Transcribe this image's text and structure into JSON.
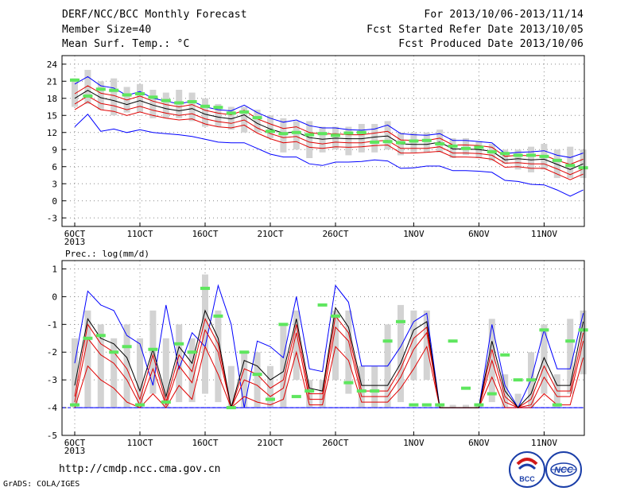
{
  "header": {
    "title": "DERF/NCC/BCC Monthly Forecast",
    "member_size": "Member Size=40",
    "variable": "Mean Surf. Temp.: °C",
    "period": "For 2013/10/06-2013/11/14",
    "started": "Fcst Started Refer Date 2013/10/05",
    "produced": "Fcst Produced Date 2013/10/06"
  },
  "footer": {
    "url": "http://cmdp.ncc.cma.gov.cn",
    "grads": "GrADS: COLA/IGES",
    "logo_left_text": "BCC",
    "logo_right_text": "NCC"
  },
  "colors": {
    "max_line": "#0000ff",
    "median_line": "#000000",
    "spread_lines": "#e00000",
    "box": "#d3d3d3",
    "mean_marker": "#5ee65e",
    "zero_line": "#0000ff"
  },
  "chart_data": [
    {
      "type": "line",
      "title": "Mean Surf. Temp.: °C",
      "xlabel": "",
      "ylabel": "",
      "x_tick_labels": [
        "6OCT",
        "11OCT",
        "16OCT",
        "21OCT",
        "26OCT",
        "1NOV",
        "6NOV",
        "11NOV"
      ],
      "x_tick_sublabel": "2013",
      "y_ticks": [
        -3,
        0,
        3,
        6,
        9,
        12,
        15,
        18,
        21,
        24
      ],
      "ylim": [
        -4.5,
        25.5
      ],
      "grid": true,
      "days": 40,
      "series": [
        {
          "name": "",
          "role": "max",
          "values": [
            20.5,
            21.8,
            20.2,
            19.8,
            18.5,
            19.2,
            18.0,
            17.5,
            17.0,
            17.5,
            16.5,
            16.0,
            15.8,
            16.8,
            15.5,
            14.5,
            13.8,
            14.2,
            13.2,
            12.8,
            12.8,
            12.5,
            12.4,
            12.6,
            13.3,
            11.8,
            11.6,
            11.5,
            11.8,
            10.6,
            10.6,
            10.4,
            10.2,
            8.3,
            8.5,
            8.6,
            8.8,
            8.0,
            7.6,
            8.4
          ]
        },
        {
          "name": "",
          "role": "upper",
          "values": [
            18.8,
            20.2,
            18.9,
            18.5,
            17.7,
            18.4,
            17.5,
            16.9,
            16.5,
            16.9,
            15.9,
            15.4,
            15.1,
            15.9,
            14.4,
            13.5,
            12.7,
            13.0,
            12.0,
            11.7,
            11.8,
            11.6,
            11.6,
            11.9,
            12.2,
            10.7,
            10.6,
            10.6,
            11.0,
            9.8,
            9.8,
            9.7,
            9.4,
            7.8,
            8.0,
            7.9,
            8.0,
            7.1,
            6.4,
            7.3
          ]
        },
        {
          "name": "",
          "role": "median",
          "values": [
            18.0,
            19.4,
            18.1,
            17.6,
            16.9,
            17.6,
            16.8,
            16.2,
            15.8,
            16.2,
            15.2,
            14.7,
            14.4,
            15.1,
            13.6,
            12.6,
            11.9,
            12.1,
            11.1,
            10.8,
            11.0,
            10.9,
            10.9,
            11.2,
            11.4,
            10.0,
            9.9,
            9.9,
            10.3,
            9.1,
            9.1,
            9.0,
            8.7,
            7.2,
            7.4,
            7.2,
            7.3,
            6.4,
            5.5,
            6.5
          ]
        },
        {
          "name": "",
          "role": "lower",
          "values": [
            17.0,
            18.4,
            17.1,
            16.7,
            16.0,
            16.6,
            15.9,
            15.4,
            15.0,
            15.3,
            14.4,
            13.9,
            13.6,
            14.2,
            12.8,
            11.8,
            11.1,
            11.3,
            10.3,
            10.0,
            10.3,
            10.2,
            10.2,
            10.5,
            10.6,
            9.2,
            9.2,
            9.2,
            9.5,
            8.4,
            8.4,
            8.3,
            8.0,
            6.6,
            6.7,
            6.5,
            6.5,
            5.6,
            4.6,
            5.6
          ]
        },
        {
          "name": "",
          "role": "lower2",
          "values": [
            16.0,
            17.4,
            16.0,
            15.7,
            15.0,
            15.6,
            15.0,
            14.5,
            14.2,
            14.4,
            13.5,
            13.0,
            12.8,
            13.3,
            11.9,
            10.9,
            10.2,
            10.4,
            9.4,
            9.2,
            9.5,
            9.4,
            9.5,
            9.7,
            9.8,
            8.4,
            8.4,
            8.5,
            8.7,
            7.7,
            7.7,
            7.6,
            7.3,
            5.9,
            6.0,
            5.7,
            5.7,
            4.7,
            3.7,
            4.7
          ]
        },
        {
          "name": "",
          "role": "min",
          "values": [
            13.0,
            15.2,
            12.2,
            12.6,
            12.0,
            12.5,
            12.0,
            11.8,
            11.6,
            11.3,
            10.8,
            10.3,
            10.2,
            10.2,
            9.2,
            8.2,
            7.7,
            7.7,
            6.5,
            6.2,
            6.8,
            6.8,
            6.9,
            7.2,
            7.0,
            5.7,
            5.8,
            6.1,
            6.1,
            5.3,
            5.3,
            5.2,
            5.0,
            3.6,
            3.4,
            2.9,
            2.8,
            1.9,
            0.8,
            1.9
          ]
        },
        {
          "name": "",
          "role": "mean_marker",
          "values": [
            21.2,
            18.4,
            19.6,
            19.4,
            18.6,
            18.8,
            18.2,
            17.6,
            17.2,
            17.4,
            16.6,
            16.4,
            15.4,
            15.6,
            14.6,
            12.2,
            11.8,
            12.0,
            11.6,
            11.8,
            11.5,
            11.9,
            12.0,
            10.3,
            10.4,
            10.2,
            10.5,
            10.6,
            10.0,
            9.6,
            9.2,
            9.4,
            8.6,
            8.3,
            8.0,
            8.0,
            7.8,
            7.1,
            6.2,
            5.8
          ]
        },
        {
          "name": "",
          "role": "box_top",
          "values": [
            21.5,
            23.0,
            21.0,
            21.5,
            20.0,
            20.5,
            19.5,
            19.0,
            19.5,
            19.0,
            18.0,
            17.0,
            16.5,
            16.5,
            16.0,
            15.0,
            14.5,
            14.0,
            14.0,
            13.0,
            13.0,
            13.0,
            13.5,
            13.5,
            14.0,
            12.0,
            12.0,
            12.0,
            12.5,
            11.0,
            11.0,
            10.5,
            10.0,
            9.0,
            9.0,
            9.5,
            10.0,
            9.0,
            9.5,
            9.0
          ]
        },
        {
          "name": "",
          "role": "box_bottom",
          "values": [
            16.5,
            17.0,
            16.0,
            15.0,
            15.5,
            15.5,
            14.5,
            14.5,
            14.5,
            14.0,
            13.0,
            13.0,
            12.5,
            12.0,
            12.0,
            11.0,
            8.5,
            9.0,
            7.5,
            8.5,
            9.0,
            8.0,
            8.5,
            8.5,
            9.0,
            8.0,
            8.5,
            8.5,
            8.5,
            7.5,
            8.0,
            7.5,
            7.0,
            6.5,
            5.5,
            5.0,
            5.5,
            4.0,
            4.0,
            4.0
          ]
        }
      ]
    },
    {
      "type": "line",
      "title": "Prec.: log(mm/d)",
      "xlabel": "",
      "ylabel": "",
      "x_tick_labels": [
        "6OCT",
        "11OCT",
        "16OCT",
        "21OCT",
        "26OCT",
        "1NOV",
        "6NOV",
        "11NOV"
      ],
      "x_tick_sublabel": "2013",
      "y_ticks": [
        -5,
        -4,
        -3,
        -2,
        -1,
        0,
        1
      ],
      "ylim": [
        -5,
        1.3
      ],
      "grid": true,
      "days": 40,
      "series": [
        {
          "name": "",
          "role": "max",
          "values": [
            -2.4,
            0.2,
            -0.3,
            -0.5,
            -1.4,
            -1.7,
            -3.2,
            -0.3,
            -2.6,
            -1.3,
            -1.8,
            0.4,
            -1.0,
            -4.0,
            -1.6,
            -1.8,
            -2.2,
            0.0,
            -2.6,
            -2.7,
            0.4,
            -0.2,
            -2.5,
            -2.5,
            -2.5,
            -1.8,
            -0.9,
            -0.6,
            -4.0,
            -4.0,
            -4.0,
            -4.0,
            -1.0,
            -3.2,
            -4.0,
            -3.0,
            -1.2,
            -2.6,
            -2.6,
            -0.6
          ]
        },
        {
          "name": "",
          "role": "median",
          "values": [
            -3.2,
            -0.8,
            -1.5,
            -1.7,
            -2.2,
            -3.4,
            -1.9,
            -3.6,
            -1.8,
            -2.4,
            -0.5,
            -1.5,
            -4.0,
            -2.3,
            -2.5,
            -3.0,
            -2.7,
            -0.8,
            -3.3,
            -3.4,
            -0.4,
            -1.1,
            -3.2,
            -3.2,
            -3.2,
            -2.4,
            -1.2,
            -0.9,
            -4.0,
            -4.0,
            -4.0,
            -4.0,
            -1.6,
            -3.4,
            -4.0,
            -3.5,
            -2.2,
            -3.2,
            -3.2,
            -0.9
          ]
        },
        {
          "name": "",
          "role": "upper",
          "values": [
            -3.6,
            -1.0,
            -1.7,
            -2.0,
            -2.6,
            -3.7,
            -2.1,
            -3.8,
            -2.1,
            -2.7,
            -0.8,
            -1.7,
            -4.0,
            -2.6,
            -2.8,
            -3.3,
            -3.0,
            -1.0,
            -3.5,
            -3.5,
            -0.7,
            -1.3,
            -3.4,
            -3.4,
            -3.4,
            -2.6,
            -1.5,
            -1.1,
            -4.0,
            -4.0,
            -4.0,
            -4.0,
            -1.9,
            -3.6,
            -4.0,
            -3.7,
            -2.5,
            -3.4,
            -3.4,
            -1.3
          ]
        },
        {
          "name": "",
          "role": "lower",
          "values": [
            -3.8,
            -1.5,
            -2.1,
            -2.4,
            -3.0,
            -3.9,
            -2.6,
            -3.9,
            -2.5,
            -3.1,
            -1.2,
            -2.0,
            -4.0,
            -3.0,
            -3.2,
            -3.6,
            -3.3,
            -1.3,
            -3.7,
            -3.7,
            -1.1,
            -1.6,
            -3.6,
            -3.6,
            -3.6,
            -2.9,
            -1.9,
            -1.3,
            -4.0,
            -4.0,
            -4.0,
            -4.0,
            -2.3,
            -3.8,
            -4.0,
            -3.9,
            -2.9,
            -3.6,
            -3.6,
            -1.6
          ]
        },
        {
          "name": "",
          "role": "lower2",
          "values": [
            -4.0,
            -2.5,
            -3.0,
            -3.3,
            -3.8,
            -4.0,
            -3.5,
            -4.0,
            -3.2,
            -3.7,
            -1.8,
            -2.8,
            -4.0,
            -3.6,
            -3.8,
            -3.9,
            -3.7,
            -2.0,
            -3.9,
            -3.9,
            -1.8,
            -2.3,
            -3.8,
            -3.8,
            -3.8,
            -3.3,
            -2.6,
            -1.8,
            -4.0,
            -4.0,
            -4.0,
            -4.0,
            -2.9,
            -4.0,
            -4.0,
            -4.0,
            -3.5,
            -3.9,
            -3.9,
            -2.2
          ]
        },
        {
          "name": "",
          "role": "min",
          "values": [
            -4.0,
            -4.0,
            -4.0,
            -4.0,
            -4.0,
            -4.0,
            -4.0,
            -4.0,
            -4.0,
            -4.0,
            -4.0,
            -4.0,
            -4.0,
            -4.0,
            -4.0,
            -4.0,
            -4.0,
            -4.0,
            -4.0,
            -4.0,
            -4.0,
            -4.0,
            -4.0,
            -4.0,
            -4.0,
            -4.0,
            -4.0,
            -4.0,
            -4.0,
            -4.0,
            -4.0,
            -4.0,
            -4.0,
            -4.0,
            -4.0,
            -4.0,
            -4.0,
            -4.0,
            -4.0,
            -4.0
          ]
        },
        {
          "name": "",
          "role": "mean_marker",
          "values": [
            -3.9,
            -1.5,
            -1.4,
            -2.0,
            -1.8,
            -3.9,
            -1.9,
            -3.8,
            -1.7,
            -2.0,
            0.3,
            -0.7,
            -4.0,
            -2.0,
            -2.8,
            -3.7,
            -1.0,
            -3.6,
            -3.4,
            -0.3,
            -0.7,
            -3.1,
            -3.4,
            -3.4,
            -1.6,
            -0.9,
            -3.9,
            -3.9,
            -3.9,
            -1.6,
            -3.3,
            -3.9,
            -3.5,
            -2.1,
            -3.0,
            -3.0,
            -1.2,
            -3.9,
            -1.6,
            -1.2
          ]
        },
        {
          "name": "",
          "role": "box_top",
          "values": [
            -1.5,
            -0.5,
            -1.0,
            -1.5,
            -1.0,
            -1.5,
            -0.5,
            -1.5,
            -1.0,
            -1.5,
            0.8,
            -0.5,
            -2.5,
            -2.0,
            -2.0,
            -2.5,
            -1.0,
            -0.5,
            -3.0,
            -3.0,
            -0.5,
            -0.5,
            -2.5,
            -2.5,
            -1.0,
            -0.3,
            -0.5,
            -0.5,
            -3.9,
            -3.9,
            -3.9,
            -3.9,
            -0.8,
            -2.8,
            -3.5,
            -2.0,
            -1.0,
            -2.8,
            -0.8,
            -0.5
          ]
        },
        {
          "name": "",
          "role": "box_bottom",
          "values": [
            -4.0,
            -4.0,
            -4.0,
            -4.0,
            -4.0,
            -4.0,
            -3.5,
            -4.0,
            -3.8,
            -3.8,
            -3.5,
            -3.8,
            -4.0,
            -4.0,
            -4.0,
            -4.0,
            -4.0,
            -3.0,
            -4.0,
            -4.0,
            -3.0,
            -3.5,
            -4.0,
            -4.0,
            -4.0,
            -3.8,
            -3.0,
            -3.0,
            -4.0,
            -4.0,
            -4.0,
            -4.0,
            -3.8,
            -4.0,
            -4.0,
            -4.0,
            -3.5,
            -4.0,
            -3.5,
            -2.8
          ]
        }
      ]
    }
  ]
}
